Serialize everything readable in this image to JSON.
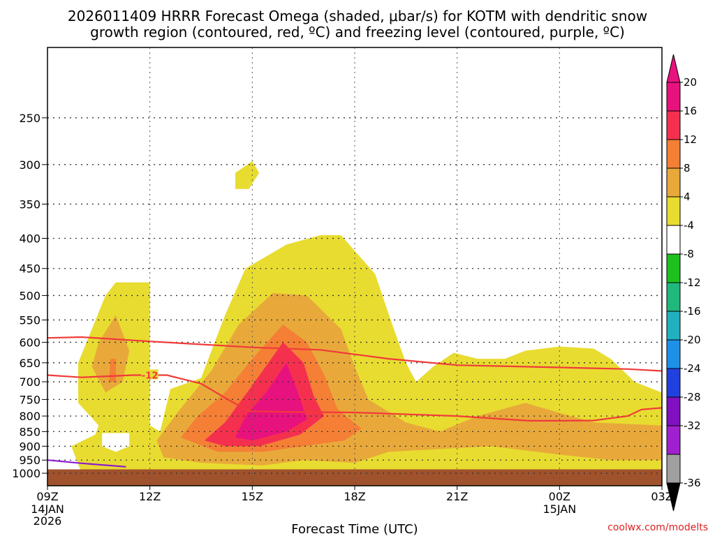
{
  "chart_data": {
    "type": "heatmap",
    "title_line1": "2026011409 HRRR Forecast Omega (shaded, μbar/s) for KOTM with dendritic snow",
    "title_line2": "growth region (contoured, red, ºC) and freezing level (contoured, purple, ºC)",
    "xlabel": "Forecast Time (UTC)",
    "credit": "coolwx.com/modelts",
    "y_axis": {
      "scale": "log-pressure",
      "ylim": [
        1050,
        190
      ],
      "ticks": [
        250,
        300,
        350,
        400,
        450,
        500,
        550,
        600,
        650,
        700,
        750,
        800,
        850,
        900,
        950,
        1000
      ]
    },
    "x_axis": {
      "xlim": [
        0,
        18
      ],
      "unit": "hours since 09Z 14JAN",
      "ticks": [
        {
          "x": 0,
          "label": "09Z",
          "sub1": "14JAN",
          "sub2": "2026"
        },
        {
          "x": 3,
          "label": "12Z",
          "sub1": "",
          "sub2": ""
        },
        {
          "x": 6,
          "label": "15Z",
          "sub1": "",
          "sub2": ""
        },
        {
          "x": 9,
          "label": "18Z",
          "sub1": "",
          "sub2": ""
        },
        {
          "x": 12,
          "label": "21Z",
          "sub1": "",
          "sub2": ""
        },
        {
          "x": 15,
          "label": "00Z",
          "sub1": "15JAN",
          "sub2": ""
        },
        {
          "x": 18,
          "label": "03Z",
          "sub1": "",
          "sub2": ""
        }
      ]
    },
    "colorbar": {
      "labels": [
        "20",
        "16",
        "12",
        "8",
        "4",
        "-4",
        "-8",
        "-12",
        "-16",
        "-20",
        "-24",
        "-28",
        "-32",
        "-36"
      ],
      "colors": [
        "#e8127e",
        "#f5304f",
        "#f47f35",
        "#e8a93a",
        "#e8dc30",
        "#ffffff",
        "#1ec01e",
        "#20b87c",
        "#20b0c0",
        "#1e90e8",
        "#2040e0",
        "#8010c0",
        "#a020d0",
        "#a0a0a0"
      ],
      "top_arrow_color": "#e8127e",
      "bottom_arrow_color": "#000000"
    },
    "shading_levels": [
      {
        "level": "4 to 8",
        "color": "#e8dc30",
        "regions": [
          [
            [
              1.0,
              1000
            ],
            [
              0.7,
              900
            ],
            [
              1.4,
              860
            ],
            [
              1.5,
              830
            ],
            [
              0.9,
              760
            ],
            [
              0.9,
              650
            ],
            [
              1.7,
              500
            ],
            [
              2.0,
              475
            ],
            [
              3.0,
              475
            ],
            [
              3.0,
              640
            ],
            [
              3.0,
              830
            ],
            [
              3.3,
              850
            ],
            [
              3.6,
              720
            ],
            [
              4.5,
              690
            ],
            [
              5.2,
              540
            ],
            [
              5.8,
              450
            ],
            [
              7.0,
              410
            ],
            [
              8.0,
              395
            ],
            [
              8.6,
              395
            ],
            [
              9.6,
              460
            ],
            [
              10.1,
              560
            ],
            [
              10.5,
              650
            ],
            [
              10.8,
              700
            ],
            [
              11.3,
              660
            ],
            [
              11.9,
              625
            ],
            [
              12.6,
              640
            ],
            [
              13.4,
              640
            ],
            [
              14.0,
              620
            ],
            [
              15.0,
              610
            ],
            [
              16.0,
              615
            ],
            [
              16.5,
              640
            ],
            [
              17.2,
              700
            ],
            [
              18.0,
              730
            ],
            [
              18.0,
              1000
            ],
            [
              1.0,
              1000
            ]
          ],
          [
            [
              5.5,
              330
            ],
            [
              5.5,
              310
            ],
            [
              6.0,
              296
            ],
            [
              6.2,
              310
            ],
            [
              5.9,
              330
            ],
            [
              5.5,
              330
            ]
          ]
        ]
      },
      {
        "level": "8 to 12",
        "color": "#e8a93a",
        "regions": [
          [
            [
              1.3,
              660
            ],
            [
              1.5,
              600
            ],
            [
              2.0,
              540
            ],
            [
              2.4,
              620
            ],
            [
              2.2,
              700
            ],
            [
              1.7,
              730
            ],
            [
              1.3,
              660
            ]
          ],
          [
            [
              3.2,
              880
            ],
            [
              3.8,
              790
            ],
            [
              4.8,
              670
            ],
            [
              5.6,
              560
            ],
            [
              6.6,
              495
            ],
            [
              7.6,
              500
            ],
            [
              8.6,
              570
            ],
            [
              9.0,
              660
            ],
            [
              9.4,
              750
            ],
            [
              10.5,
              820
            ],
            [
              11.5,
              850
            ],
            [
              12.6,
              800
            ],
            [
              14.0,
              760
            ],
            [
              15.0,
              790
            ],
            [
              16.0,
              820
            ],
            [
              18.0,
              830
            ],
            [
              18.0,
              950
            ],
            [
              16.5,
              950
            ],
            [
              15.0,
              930
            ],
            [
              13.0,
              900
            ],
            [
              11.5,
              910
            ],
            [
              10.0,
              920
            ],
            [
              9.0,
              960
            ],
            [
              7.5,
              950
            ],
            [
              6.3,
              970
            ],
            [
              4.5,
              960
            ],
            [
              3.4,
              940
            ],
            [
              3.2,
              880
            ]
          ]
        ]
      },
      {
        "level": "12 to 16",
        "color": "#f47f35",
        "regions": [
          [
            [
              1.8,
              700
            ],
            [
              1.85,
              640
            ],
            [
              2.0,
              640
            ],
            [
              2.0,
              700
            ],
            [
              1.8,
              700
            ]
          ],
          [
            [
              3.9,
              870
            ],
            [
              4.4,
              800
            ],
            [
              5.2,
              730
            ],
            [
              6.0,
              640
            ],
            [
              6.9,
              560
            ],
            [
              7.6,
              600
            ],
            [
              8.1,
              680
            ],
            [
              8.5,
              780
            ],
            [
              9.2,
              840
            ],
            [
              8.7,
              880
            ],
            [
              7.5,
              900
            ],
            [
              6.3,
              920
            ],
            [
              5.0,
              920
            ],
            [
              3.9,
              870
            ]
          ]
        ]
      },
      {
        "level": "16 to 20",
        "color": "#f5304f",
        "regions": [
          [
            [
              4.6,
              880
            ],
            [
              5.2,
              820
            ],
            [
              6.0,
              710
            ],
            [
              6.9,
              600
            ],
            [
              7.5,
              650
            ],
            [
              7.8,
              740
            ],
            [
              8.1,
              800
            ],
            [
              7.4,
              860
            ],
            [
              6.2,
              900
            ],
            [
              5.2,
              900
            ],
            [
              4.6,
              880
            ]
          ]
        ]
      },
      {
        "level": "above 20",
        "color": "#e8127e",
        "regions": [
          [
            [
              5.5,
              870
            ],
            [
              5.8,
              800
            ],
            [
              6.4,
              730
            ],
            [
              7.0,
              650
            ],
            [
              7.3,
              720
            ],
            [
              7.6,
              810
            ],
            [
              7.0,
              850
            ],
            [
              6.0,
              880
            ],
            [
              5.5,
              870
            ]
          ]
        ]
      },
      {
        "level": "-4 to 4 (blank)",
        "color": "#ffffff",
        "regions": [
          [
            [
              1.6,
              900
            ],
            [
              1.6,
              855
            ],
            [
              2.4,
              855
            ],
            [
              2.4,
              900
            ],
            [
              2.0,
              920
            ],
            [
              1.6,
              900
            ]
          ]
        ]
      }
    ],
    "contours": [
      {
        "name": "dendritic growth upper bound",
        "color": "#f03a3a",
        "label": "",
        "points": [
          [
            0,
            590
          ],
          [
            1,
            588
          ],
          [
            3,
            598
          ],
          [
            6,
            612
          ],
          [
            8,
            618
          ],
          [
            10,
            640
          ],
          [
            12,
            656
          ],
          [
            15,
            662
          ],
          [
            17,
            666
          ],
          [
            18,
            671
          ]
        ]
      },
      {
        "name": "dendritic growth lower bound",
        "color": "#f03a3a",
        "label": "-12",
        "label_at": [
          3.0,
          682
        ],
        "points": [
          [
            0,
            682
          ],
          [
            1,
            688
          ],
          [
            2.5,
            682
          ],
          [
            3.5,
            682
          ],
          [
            4.5,
            705
          ],
          [
            5.2,
            745
          ],
          [
            5.9,
            785
          ],
          [
            7,
            787
          ],
          [
            9,
            789
          ],
          [
            12,
            800
          ],
          [
            14.1,
            815
          ],
          [
            15,
            815
          ],
          [
            16,
            814
          ],
          [
            17,
            800
          ],
          [
            17.4,
            780
          ],
          [
            18,
            775
          ]
        ]
      },
      {
        "name": "freezing level",
        "color": "#8a1ad0",
        "label": "",
        "points": [
          [
            0,
            950
          ],
          [
            1,
            962
          ],
          [
            2.3,
            975
          ]
        ]
      }
    ],
    "terrain": {
      "color": "#a0522d",
      "top_pressure": 985
    }
  }
}
